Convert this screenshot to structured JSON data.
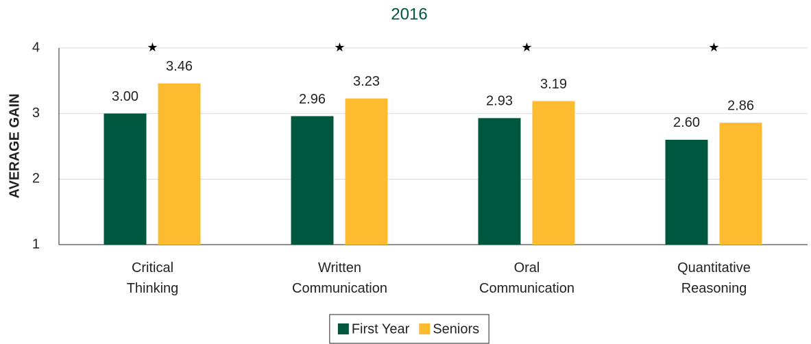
{
  "chart_data": {
    "type": "bar",
    "title": "2016",
    "ylabel": "AVERAGE GAIN",
    "categories": [
      "Critical Thinking",
      "Written Communication",
      "Oral Communication",
      "Quantitative Reasoning"
    ],
    "series": [
      {
        "name": "First Year",
        "color": "#00573f",
        "values": [
          3.0,
          2.96,
          2.93,
          2.6
        ],
        "value_labels": [
          "3.00",
          "2.96",
          "2.93",
          "2.60"
        ]
      },
      {
        "name": "Seniors",
        "color": "#fdbb30",
        "values": [
          3.46,
          3.23,
          3.19,
          2.86
        ],
        "value_labels": [
          "3.46",
          "3.23",
          "3.19",
          "2.86"
        ]
      }
    ],
    "annotations": [
      "★",
      "★",
      "★",
      "★"
    ],
    "ylim": [
      1,
      4
    ],
    "yticks": [
      1,
      2,
      3,
      4
    ],
    "grid": true,
    "legend": "bottom"
  }
}
